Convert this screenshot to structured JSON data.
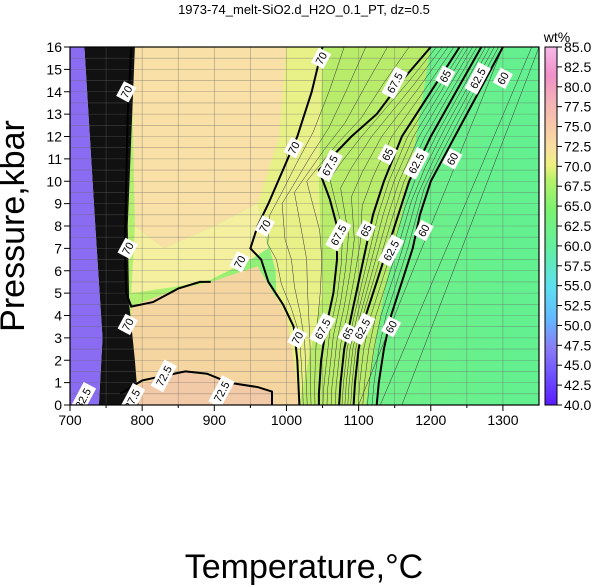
{
  "chart_data": {
    "type": "contour",
    "title": "1973-74_melt-SiO2.d_H2O_0.1_PT, dz=0.5",
    "xlabel": "Temperature,°C",
    "ylabel": "Pressure,kbar",
    "xlim": [
      700,
      1350
    ],
    "ylim": [
      0,
      16
    ],
    "xticks": [
      700,
      800,
      900,
      1000,
      1100,
      1200,
      1300
    ],
    "yticks": [
      0,
      1,
      2,
      3,
      4,
      5,
      6,
      7,
      8,
      9,
      10,
      11,
      12,
      13,
      14,
      15,
      16
    ],
    "grid": true,
    "colorbar": {
      "unit": "wt%",
      "min": 40.0,
      "max": 85.0,
      "ticks": [
        "85.0",
        "82.5",
        "80.0",
        "77.5",
        "75.0",
        "72.5",
        "70.0",
        "67.5",
        "65.0",
        "62.5",
        "60.0",
        "57.5",
        "55.0",
        "52.5",
        "50.0",
        "47.5",
        "45.0",
        "42.5",
        "40.0"
      ]
    },
    "bold_contours": [
      {
        "level": "60",
        "points": [
          [
            1300,
            16
          ],
          [
            1275,
            14.5
          ],
          [
            1250,
            13
          ],
          [
            1225,
            11.5
          ],
          [
            1200,
            10
          ],
          [
            1185,
            8.5
          ],
          [
            1175,
            7
          ],
          [
            1160,
            5.5
          ],
          [
            1145,
            4
          ],
          [
            1135,
            2.5
          ],
          [
            1128,
            1
          ],
          [
            1125,
            0
          ]
        ]
      },
      {
        "level": "62.5",
        "points": [
          [
            1270,
            16
          ],
          [
            1235,
            14
          ],
          [
            1200,
            12
          ],
          [
            1170,
            10
          ],
          [
            1155,
            8.5
          ],
          [
            1140,
            7
          ],
          [
            1125,
            5.5
          ],
          [
            1110,
            4
          ],
          [
            1100,
            2.5
          ],
          [
            1095,
            1
          ],
          [
            1093,
            0
          ]
        ]
      },
      {
        "level": "65",
        "points": [
          [
            1240,
            16
          ],
          [
            1200,
            14
          ],
          [
            1160,
            12
          ],
          [
            1135,
            10
          ],
          [
            1120,
            8.5
          ],
          [
            1110,
            7
          ],
          [
            1100,
            5.5
          ],
          [
            1090,
            4
          ],
          [
            1080,
            2.5
          ],
          [
            1075,
            1
          ],
          [
            1073,
            0
          ]
        ]
      },
      {
        "level": "67.5",
        "points": [
          [
            1200,
            16
          ],
          [
            1160,
            14.5
          ],
          [
            1125,
            13
          ],
          [
            1090,
            12
          ],
          [
            1060,
            11
          ],
          [
            1045,
            10.5
          ],
          [
            1060,
            9.2
          ],
          [
            1070,
            8
          ],
          [
            1070,
            6.5
          ],
          [
            1065,
            5
          ],
          [
            1055,
            3.5
          ],
          [
            1048,
            2
          ],
          [
            1045,
            0.5
          ],
          [
            1045,
            0
          ]
        ]
      },
      {
        "level": "70",
        "points": [
          [
            1050,
            16
          ],
          [
            1035,
            14
          ],
          [
            1015,
            12
          ],
          [
            995,
            10.5
          ],
          [
            975,
            9
          ],
          [
            960,
            8
          ],
          [
            950,
            7
          ],
          [
            965,
            6.5
          ],
          [
            975,
            5.5
          ],
          [
            995,
            4.5
          ],
          [
            1010,
            3.5
          ],
          [
            1015,
            2
          ],
          [
            1018,
            0
          ]
        ]
      },
      {
        "level": "70 (left)",
        "points": [
          [
            785,
            16
          ],
          [
            780,
            13
          ],
          [
            778,
            10
          ],
          [
            776,
            7
          ],
          [
            778,
            5
          ],
          [
            785,
            4.4
          ],
          [
            815,
            4.6
          ],
          [
            850,
            5.2
          ],
          [
            880,
            5.5
          ],
          [
            895,
            5.5
          ]
        ]
      },
      {
        "level": "72.5",
        "points": [
          [
            770,
            0.5
          ],
          [
            800,
            1.1
          ],
          [
            830,
            1.3
          ],
          [
            860,
            1.5
          ],
          [
            890,
            1.4
          ],
          [
            920,
            1.0
          ],
          [
            960,
            0.8
          ],
          [
            980,
            0.6
          ],
          [
            980,
            0
          ]
        ]
      }
    ],
    "contour_labels": [
      {
        "text": "70",
        "x": 1048,
        "y": 15.5
      },
      {
        "text": "70",
        "x": 1010,
        "y": 11.5
      },
      {
        "text": "70",
        "x": 970,
        "y": 8.0
      },
      {
        "text": "70",
        "x": 935,
        "y": 6.4
      },
      {
        "text": "70",
        "x": 1015,
        "y": 3.0
      },
      {
        "text": "70",
        "x": 778,
        "y": 14.0
      },
      {
        "text": "70",
        "x": 780,
        "y": 7.0
      },
      {
        "text": "70",
        "x": 780,
        "y": 3.6
      },
      {
        "text": "67.5",
        "x": 1150,
        "y": 14.4
      },
      {
        "text": "67.5",
        "x": 1060,
        "y": 10.7
      },
      {
        "text": "67.5",
        "x": 1072,
        "y": 7.6
      },
      {
        "text": "67.5",
        "x": 1050,
        "y": 3.4
      },
      {
        "text": "65",
        "x": 1220,
        "y": 14.7
      },
      {
        "text": "65",
        "x": 1140,
        "y": 11.2
      },
      {
        "text": "65",
        "x": 1110,
        "y": 7.8
      },
      {
        "text": "65",
        "x": 1085,
        "y": 3.2
      },
      {
        "text": "62.5",
        "x": 1265,
        "y": 14.6
      },
      {
        "text": "62.5",
        "x": 1180,
        "y": 10.8
      },
      {
        "text": "62.5",
        "x": 1145,
        "y": 6.9
      },
      {
        "text": "62.5",
        "x": 1105,
        "y": 3.4
      },
      {
        "text": "60",
        "x": 1300,
        "y": 14.6
      },
      {
        "text": "60",
        "x": 1230,
        "y": 11.0
      },
      {
        "text": "60",
        "x": 1190,
        "y": 7.8
      },
      {
        "text": "60",
        "x": 1145,
        "y": 3.5
      },
      {
        "text": "72.5",
        "x": 830,
        "y": 1.3
      },
      {
        "text": "72.5",
        "x": 910,
        "y": 0.6
      },
      {
        "text": "37.5",
        "x": 786,
        "y": 0.25
      },
      {
        "text": "32.5",
        "x": 718,
        "y": 0.3
      }
    ]
  }
}
